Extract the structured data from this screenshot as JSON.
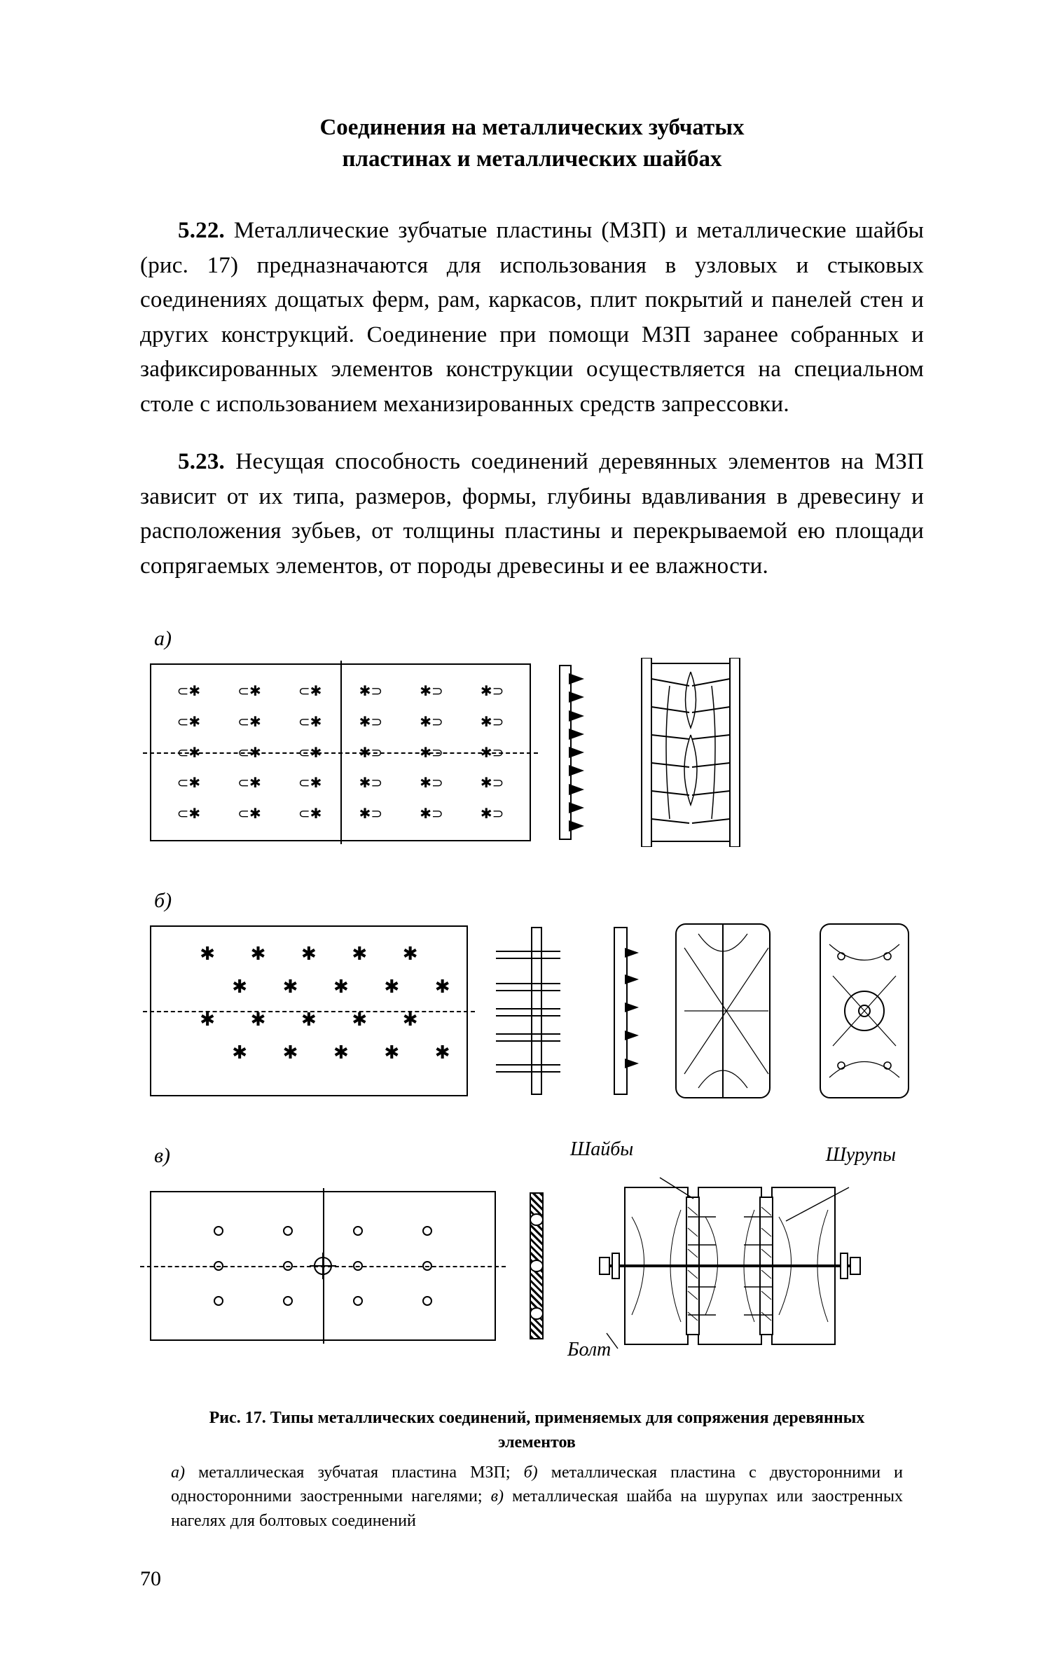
{
  "section_title_l1": "Соединения на металлических зубчатых",
  "section_title_l2": "пластинах и металлических шайбах",
  "para522_num": "5.22.",
  "para522_text": " Металлические зубчатые пластины (МЗП) и металлические шайбы (рис. 17) предназначаются для использования в узловых и стыковых соединениях дощатых ферм, рам, каркасов, плит покрытий и панелей стен и других конструкций. Соединение при помощи МЗП заранее собранных и зафиксированных элементов конструкции осуществляется на специальном столе с использованием механизированных средств запрессовки.",
  "para523_num": "5.23.",
  "para523_text": " Несущая способность соединений деревянных элементов на МЗП зависит от их типа, размеров, формы, глубины вдавливания в древесину и расположения зубьев, от толщины пластины и перекрываемой ею площади сопрягаемых элементов, от породы древесины и ее влажности.",
  "label_a": "а)",
  "label_b": "б)",
  "label_v": "в)",
  "tooth_glyph": "⊂✱",
  "tooth_glyph_r": "✱⊃",
  "star_glyph": "✱",
  "ann_washers": "Шайбы",
  "ann_screws": "Шурупы",
  "ann_bolt": "Болт",
  "caption_title": "Рис. 17. Типы металлических соединений, применяемых для сопряжения деревянных элементов",
  "caption_body_a": "а)",
  "caption_body_a_t": " металлическая зубчатая пластина МЗП; ",
  "caption_body_b": "б)",
  "caption_body_b_t": " металлическая пластина с двусторонними и односторонними заостренными нагелями; ",
  "caption_body_v": "в)",
  "caption_body_v_t": " металлическая шайба на шурупах или заостренных нагелях для болтовых соединений",
  "page_number": "70",
  "figure": {
    "a": {
      "grid_cols": 6,
      "grid_rows": 5,
      "side_teeth": 9
    },
    "b": {
      "grid_cols": 5,
      "grid_rows": 4,
      "offset_rows": [
        1,
        3
      ]
    },
    "c": {
      "grid_cols": 4,
      "grid_rows": 3
    }
  },
  "colors": {
    "ink": "#000000",
    "paper": "#ffffff"
  }
}
